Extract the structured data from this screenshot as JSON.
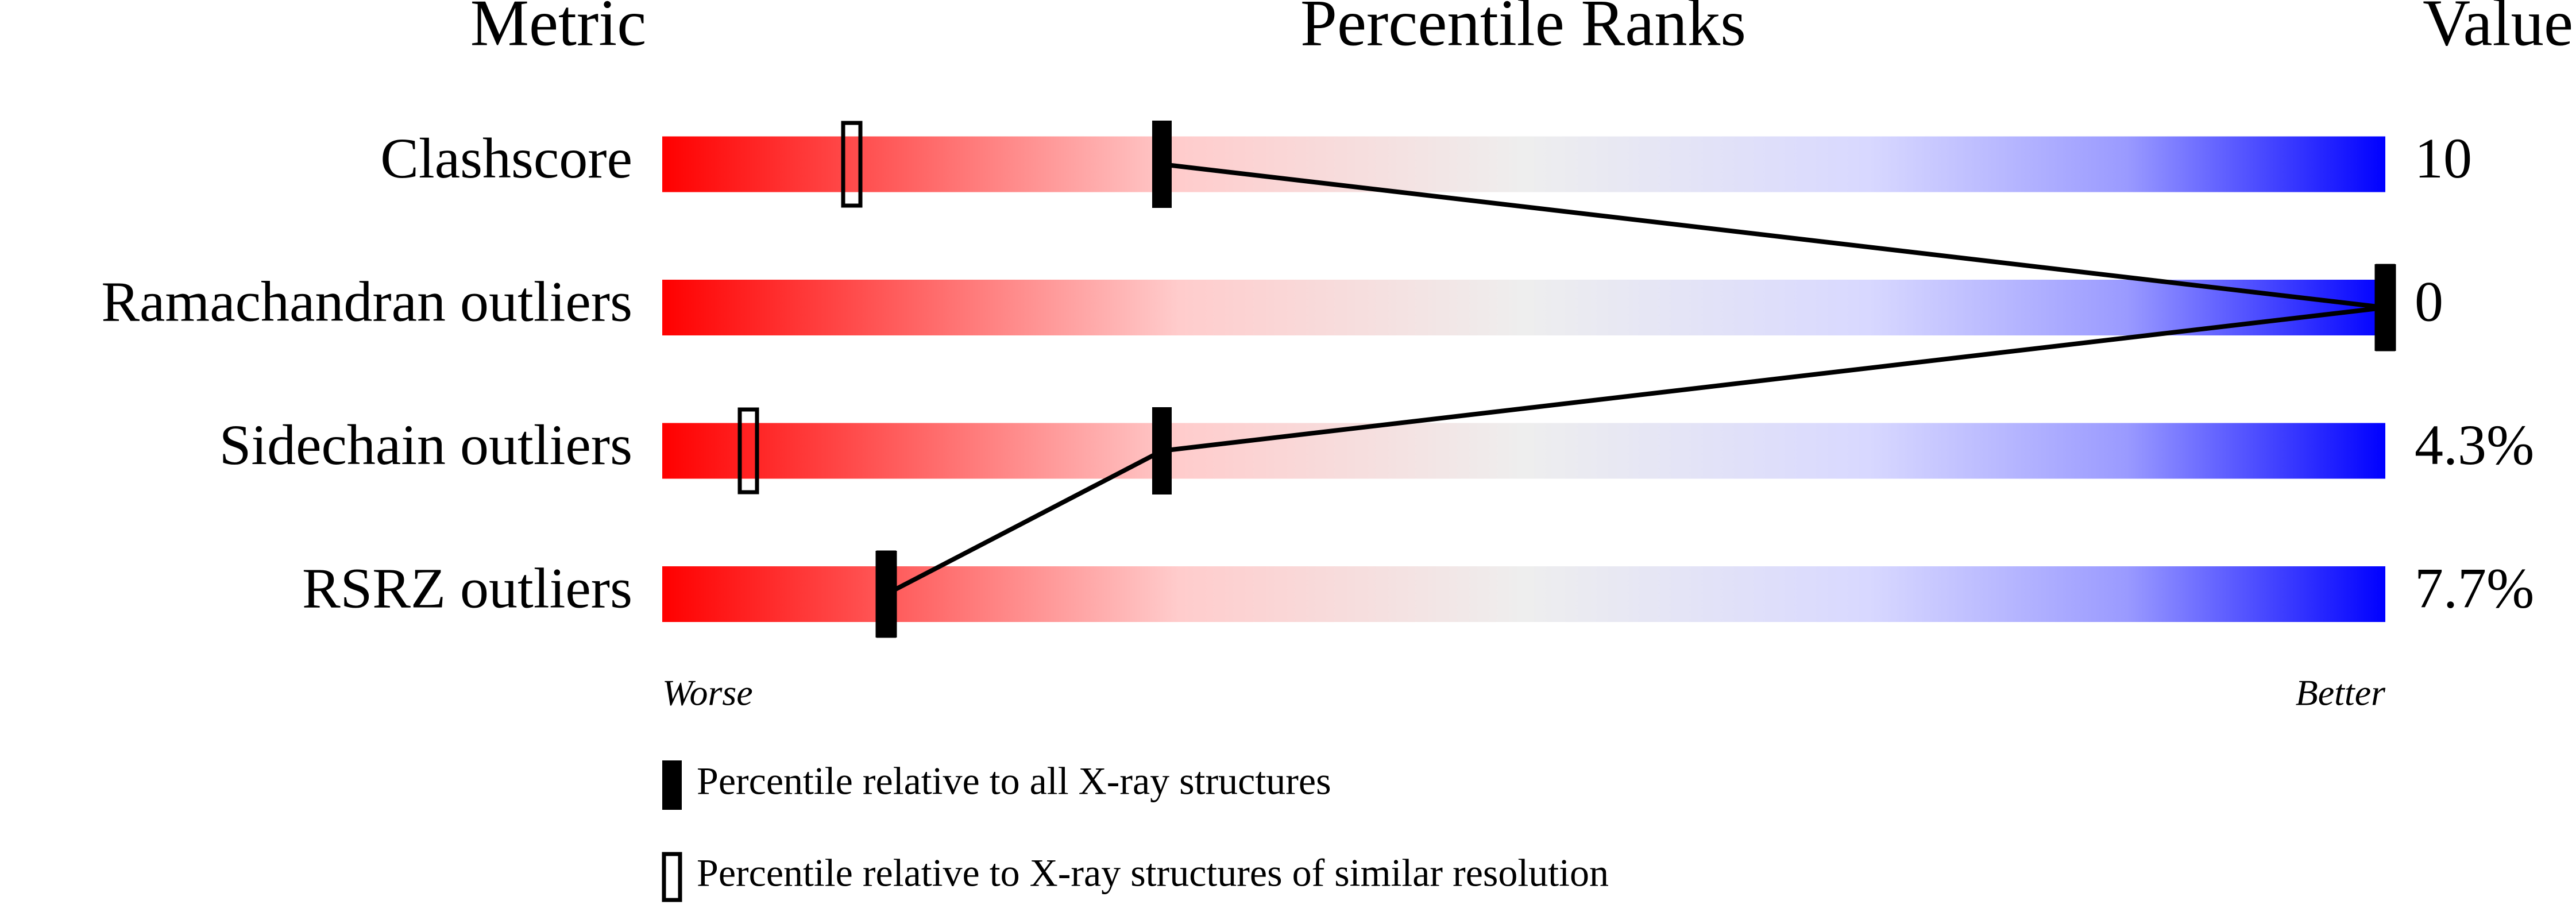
{
  "chart_data": {
    "type": "percentile-slider",
    "headers": {
      "metric": "Metric",
      "ranks": "Percentile Ranks",
      "value": "Value"
    },
    "categories": [
      "Clashscore",
      "Ramachandran outliers",
      "Sidechain outliers",
      "RSRZ outliers"
    ],
    "values": [
      10,
      0,
      4.3,
      7.7
    ],
    "value_labels": [
      "10",
      "0",
      "4.3%",
      "7.7%"
    ],
    "xlim": [
      0,
      100
    ],
    "axis_labels": {
      "low": "Worse",
      "high": "Better"
    },
    "series": [
      {
        "name": "Percentile relative to all X-ray structures",
        "color": "#000000",
        "marker": "filled",
        "connected": true,
        "values": [
          29,
          100,
          29,
          13
        ]
      },
      {
        "name": "Percentile relative to X-ray structures of similar resolution",
        "color": "#000000",
        "marker": "outline",
        "connected": false,
        "values": [
          11,
          100,
          5,
          13
        ]
      }
    ]
  }
}
